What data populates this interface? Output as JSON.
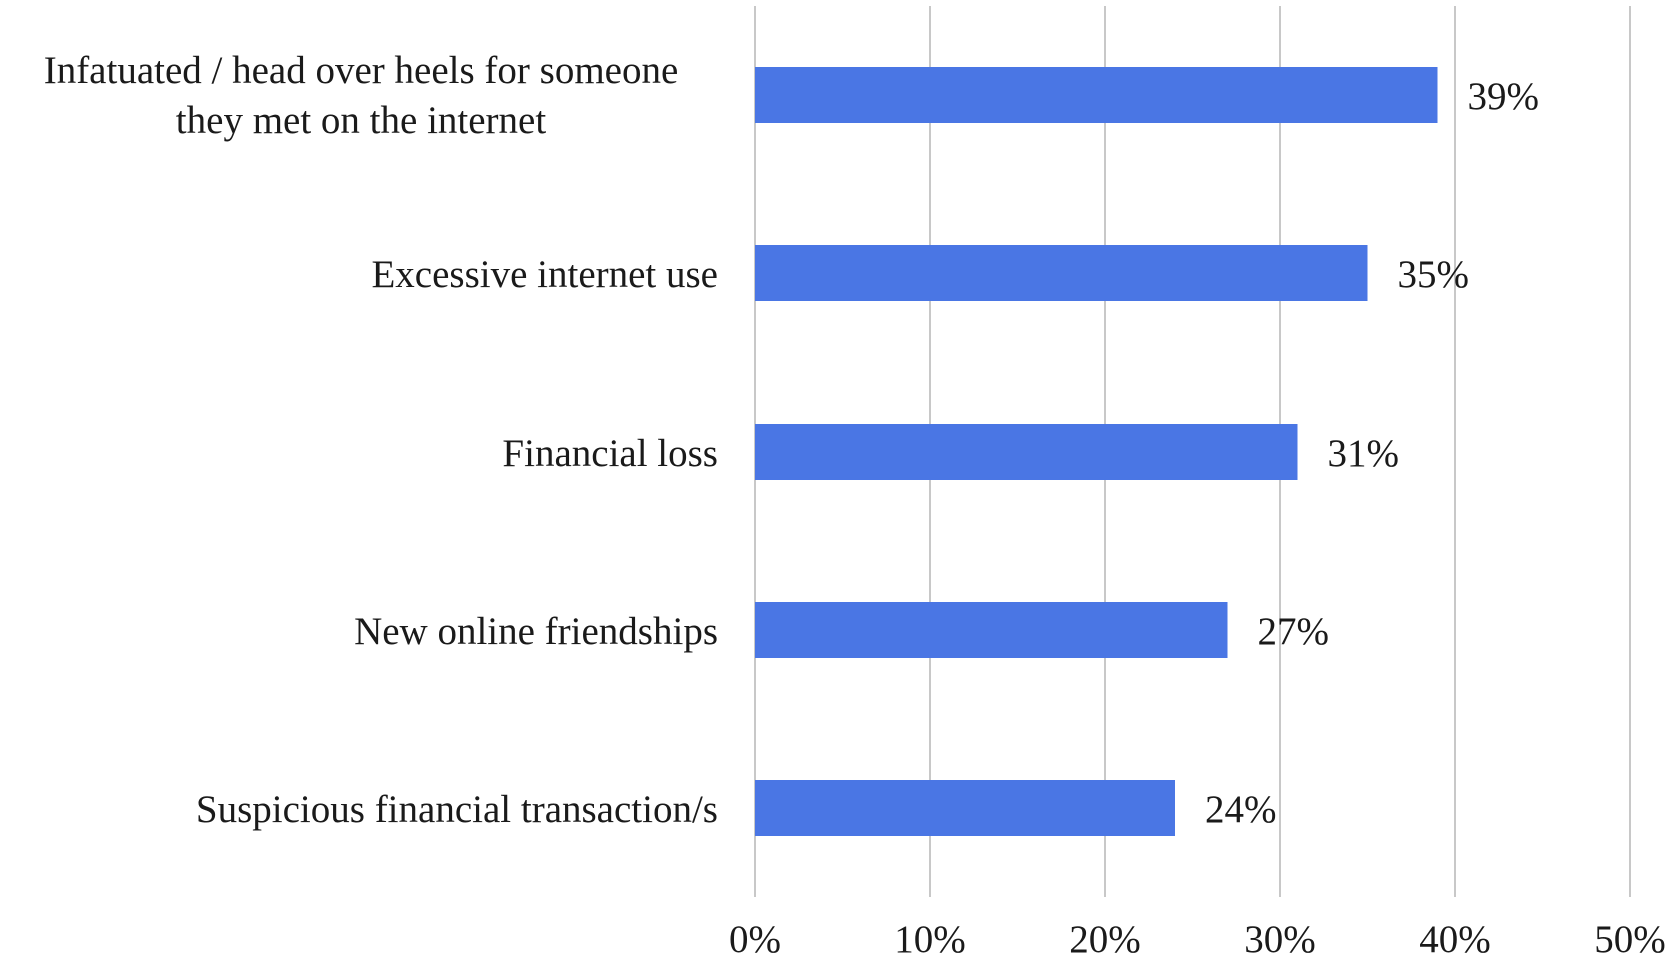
{
  "chart_data": {
    "type": "bar",
    "orientation": "horizontal",
    "categories": [
      [
        "Infatuated / head over heels for someone",
        "they met on the internet"
      ],
      [
        "Excessive internet use"
      ],
      [
        "Financial loss"
      ],
      [
        "New online friendships"
      ],
      [
        "Suspicious financial transaction/s"
      ]
    ],
    "values": [
      39,
      35,
      31,
      27,
      24
    ],
    "value_labels": [
      "39%",
      "35%",
      "31%",
      "27%",
      "24%"
    ],
    "xlim": [
      0,
      50
    ],
    "xticks": [
      0,
      10,
      20,
      30,
      40,
      50
    ],
    "xtick_labels": [
      "0%",
      "10%",
      "20%",
      "30%",
      "40%",
      "50%"
    ],
    "grid": true,
    "bar_color": "#4a76e4",
    "title": "",
    "xlabel": "",
    "ylabel": ""
  }
}
